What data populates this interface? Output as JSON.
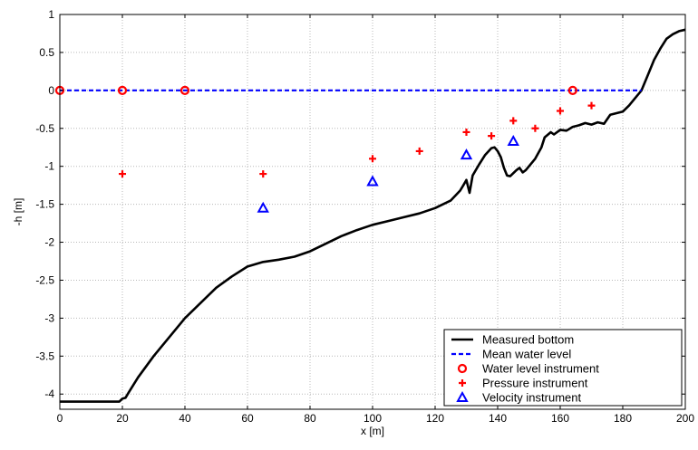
{
  "chart_data": {
    "type": "line",
    "title": "",
    "xlabel": "x [m]",
    "ylabel": "-h [m]",
    "xlim": [
      0,
      200
    ],
    "ylim": [
      -4.2,
      1
    ],
    "x_ticks": [
      0,
      20,
      40,
      60,
      80,
      100,
      120,
      140,
      160,
      180,
      200
    ],
    "y_ticks": [
      1,
      0.5,
      0,
      -0.5,
      -1,
      -1.5,
      -2,
      -2.5,
      -3,
      -3.5,
      -4
    ],
    "x_tick_labels": [
      "0",
      "20",
      "40",
      "60",
      "80",
      "100",
      "120",
      "140",
      "160",
      "180",
      "200"
    ],
    "y_tick_labels": [
      "1",
      "0.5",
      "0",
      "-0.5",
      "-1",
      "-1.5",
      "-2",
      "-2.5",
      "-3",
      "-3.5",
      "-4"
    ],
    "grid": true,
    "legend_position": "bottom-right",
    "series": [
      {
        "name": "Measured bottom",
        "style": "line",
        "color": "#000000",
        "points": [
          [
            0,
            -4.1
          ],
          [
            19,
            -4.1
          ],
          [
            20,
            -4.06
          ],
          [
            21,
            -4.05
          ],
          [
            22,
            -3.98
          ],
          [
            25,
            -3.78
          ],
          [
            30,
            -3.5
          ],
          [
            35,
            -3.25
          ],
          [
            40,
            -3.0
          ],
          [
            45,
            -2.8
          ],
          [
            50,
            -2.6
          ],
          [
            55,
            -2.45
          ],
          [
            60,
            -2.32
          ],
          [
            65,
            -2.26
          ],
          [
            70,
            -2.23
          ],
          [
            75,
            -2.19
          ],
          [
            80,
            -2.12
          ],
          [
            85,
            -2.02
          ],
          [
            90,
            -1.92
          ],
          [
            95,
            -1.84
          ],
          [
            100,
            -1.77
          ],
          [
            105,
            -1.72
          ],
          [
            110,
            -1.67
          ],
          [
            115,
            -1.62
          ],
          [
            120,
            -1.55
          ],
          [
            125,
            -1.45
          ],
          [
            128,
            -1.32
          ],
          [
            129,
            -1.25
          ],
          [
            130,
            -1.18
          ],
          [
            131,
            -1.35
          ],
          [
            132,
            -1.12
          ],
          [
            134,
            -0.98
          ],
          [
            136,
            -0.85
          ],
          [
            138,
            -0.76
          ],
          [
            139,
            -0.75
          ],
          [
            140,
            -0.8
          ],
          [
            141,
            -0.88
          ],
          [
            142,
            -1.02
          ],
          [
            143,
            -1.12
          ],
          [
            144,
            -1.13
          ],
          [
            146,
            -1.05
          ],
          [
            147,
            -1.02
          ],
          [
            148,
            -1.08
          ],
          [
            149,
            -1.05
          ],
          [
            150,
            -1.0
          ],
          [
            152,
            -0.9
          ],
          [
            154,
            -0.75
          ],
          [
            155,
            -0.62
          ],
          [
            157,
            -0.55
          ],
          [
            158,
            -0.58
          ],
          [
            160,
            -0.52
          ],
          [
            162,
            -0.53
          ],
          [
            164,
            -0.48
          ],
          [
            166,
            -0.46
          ],
          [
            168,
            -0.43
          ],
          [
            170,
            -0.45
          ],
          [
            172,
            -0.42
          ],
          [
            174,
            -0.44
          ],
          [
            176,
            -0.32
          ],
          [
            178,
            -0.3
          ],
          [
            180,
            -0.28
          ],
          [
            182,
            -0.2
          ],
          [
            184,
            -0.1
          ],
          [
            186,
            0.0
          ],
          [
            188,
            0.2
          ],
          [
            190,
            0.4
          ],
          [
            192,
            0.55
          ],
          [
            194,
            0.68
          ],
          [
            196,
            0.74
          ],
          [
            198,
            0.78
          ],
          [
            200,
            0.8
          ]
        ]
      },
      {
        "name": "Mean water level",
        "style": "dashed-line",
        "color": "#0000ff",
        "points": [
          [
            0,
            0
          ],
          [
            186,
            0
          ]
        ]
      },
      {
        "name": "Water level instrument",
        "style": "marker-circle",
        "color": "#ff0000",
        "points": [
          [
            0,
            0
          ],
          [
            20,
            0
          ],
          [
            40,
            0
          ],
          [
            164,
            0
          ]
        ]
      },
      {
        "name": "Pressure instrument",
        "style": "marker-plus",
        "color": "#ff0000",
        "points": [
          [
            20,
            -1.1
          ],
          [
            65,
            -1.1
          ],
          [
            100,
            -0.9
          ],
          [
            115,
            -0.8
          ],
          [
            130,
            -0.55
          ],
          [
            138,
            -0.6
          ],
          [
            145,
            -0.4
          ],
          [
            152,
            -0.5
          ],
          [
            160,
            -0.27
          ],
          [
            170,
            -0.2
          ]
        ]
      },
      {
        "name": "Velocity instrument",
        "style": "marker-triangle",
        "color": "#0000ff",
        "points": [
          [
            65,
            -1.55
          ],
          [
            100,
            -1.2
          ],
          [
            130,
            -0.85
          ],
          [
            145,
            -0.67
          ]
        ]
      }
    ]
  }
}
